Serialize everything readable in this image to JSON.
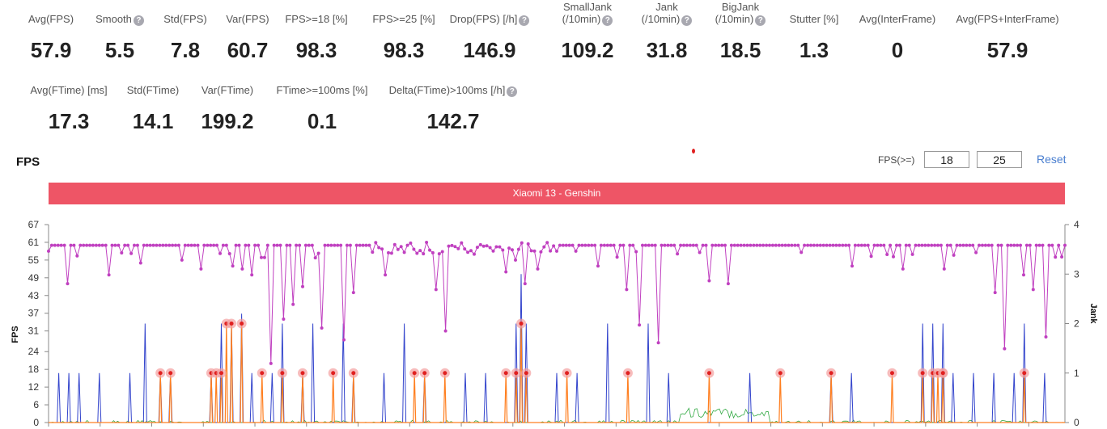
{
  "stats_row1": [
    {
      "label": "Avg(FPS)",
      "value": "57.9",
      "help": false
    },
    {
      "label": "Smooth",
      "value": "5.5",
      "help": true
    },
    {
      "label": "Std(FPS)",
      "value": "7.8",
      "help": false
    },
    {
      "label": "Var(FPS)",
      "value": "60.7",
      "help": false
    },
    {
      "label": "FPS>=18 [%]",
      "value": "98.3",
      "help": false
    },
    {
      "label": "FPS>=25 [%]",
      "value": "98.3",
      "help": false
    },
    {
      "label": "Drop(FPS) [/h]",
      "value": "146.9",
      "help": true
    },
    {
      "label": "SmallJank",
      "label2": "(/10min)",
      "value": "109.2",
      "help": true
    },
    {
      "label": "Jank",
      "label2": "(/10min)",
      "value": "31.8",
      "help": true
    },
    {
      "label": "BigJank",
      "label2": "(/10min)",
      "value": "18.5",
      "help": true
    },
    {
      "label": "Stutter [%]",
      "value": "1.3",
      "help": false
    },
    {
      "label": "Avg(InterFrame)",
      "value": "0",
      "help": false
    },
    {
      "label": "Avg(FPS+InterFrame)",
      "value": "57.9",
      "help": false
    }
  ],
  "stats_row2": [
    {
      "label": "Avg(FTime) [ms]",
      "value": "17.3",
      "help": false
    },
    {
      "label": "Std(FTime)",
      "value": "14.1",
      "help": false
    },
    {
      "label": "Var(FTime)",
      "value": "199.2",
      "help": false
    },
    {
      "label": "FTime>=100ms [%]",
      "value": "0.1",
      "help": false
    },
    {
      "label": "Delta(FTime)>100ms [/h]",
      "value": "142.7",
      "help": true
    }
  ],
  "help_glyph": "?",
  "section_title": "FPS",
  "threshold": {
    "label": "FPS(>=)",
    "value1": "18",
    "value2": "25",
    "reset_label": "Reset"
  },
  "colors": {
    "banner": "#ee5566",
    "fps_line": "#c040c0",
    "jank_blue": "#3344cc",
    "jank_orange": "#ff7f20",
    "jank_green": "#33aa44",
    "marker_red": "#e02020",
    "link": "#4a7fd0"
  },
  "chart_data": {
    "type": "line",
    "title": "Xiaomi 13 - Genshin",
    "ylabel": "FPS",
    "y2label": "Jank",
    "yticks": [
      0,
      6,
      12,
      18,
      24,
      31,
      37,
      43,
      49,
      55,
      61,
      67
    ],
    "y2ticks": [
      0,
      1,
      2,
      3,
      4
    ],
    "ylim": [
      0,
      67
    ],
    "y2lim": [
      0,
      4
    ],
    "fps_baseline": 60,
    "fps_dips": [
      [
        0.02,
        47
      ],
      [
        0.06,
        50
      ],
      [
        0.09,
        54
      ],
      [
        0.13,
        55
      ],
      [
        0.15,
        52
      ],
      [
        0.18,
        53
      ],
      [
        0.19,
        52
      ],
      [
        0.2,
        50
      ],
      [
        0.22,
        20
      ],
      [
        0.23,
        35
      ],
      [
        0.24,
        40
      ],
      [
        0.25,
        46
      ],
      [
        0.27,
        32
      ],
      [
        0.29,
        28
      ],
      [
        0.3,
        44
      ],
      [
        0.33,
        50
      ],
      [
        0.38,
        45
      ],
      [
        0.39,
        31
      ],
      [
        0.42,
        57
      ],
      [
        0.45,
        51
      ],
      [
        0.46,
        55
      ],
      [
        0.47,
        47
      ],
      [
        0.48,
        52
      ],
      [
        0.5,
        58
      ],
      [
        0.52,
        58
      ],
      [
        0.54,
        53
      ],
      [
        0.57,
        45
      ],
      [
        0.58,
        33
      ],
      [
        0.6,
        27
      ],
      [
        0.65,
        48
      ],
      [
        0.67,
        47
      ],
      [
        0.79,
        53
      ],
      [
        0.84,
        52
      ],
      [
        0.88,
        52
      ],
      [
        0.93,
        44
      ],
      [
        0.94,
        25
      ],
      [
        0.96,
        50
      ],
      [
        0.97,
        45
      ],
      [
        0.98,
        29
      ],
      [
        0.99,
        56
      ]
    ],
    "red_markers": [
      [
        0.11,
        1
      ],
      [
        0.12,
        1
      ],
      [
        0.16,
        1
      ],
      [
        0.165,
        1
      ],
      [
        0.17,
        1
      ],
      [
        0.175,
        2
      ],
      [
        0.18,
        2
      ],
      [
        0.19,
        2
      ],
      [
        0.21,
        1
      ],
      [
        0.23,
        1
      ],
      [
        0.25,
        1
      ],
      [
        0.28,
        1
      ],
      [
        0.3,
        1
      ],
      [
        0.36,
        1
      ],
      [
        0.37,
        1
      ],
      [
        0.39,
        1
      ],
      [
        0.45,
        1
      ],
      [
        0.46,
        1
      ],
      [
        0.465,
        2
      ],
      [
        0.47,
        1
      ],
      [
        0.51,
        1
      ],
      [
        0.57,
        1
      ],
      [
        0.65,
        1
      ],
      [
        0.72,
        1
      ],
      [
        0.77,
        1
      ],
      [
        0.83,
        1
      ],
      [
        0.86,
        1
      ],
      [
        0.87,
        1
      ],
      [
        0.875,
        1
      ],
      [
        0.88,
        1
      ],
      [
        0.88,
        1
      ],
      [
        0.96,
        1
      ]
    ],
    "blue_spikes": [
      [
        0.01,
        1
      ],
      [
        0.02,
        1
      ],
      [
        0.03,
        1
      ],
      [
        0.05,
        1
      ],
      [
        0.08,
        1
      ],
      [
        0.095,
        2
      ],
      [
        0.11,
        1
      ],
      [
        0.12,
        1
      ],
      [
        0.16,
        1
      ],
      [
        0.17,
        2
      ],
      [
        0.18,
        2
      ],
      [
        0.19,
        2.2
      ],
      [
        0.2,
        1
      ],
      [
        0.22,
        1
      ],
      [
        0.23,
        2
      ],
      [
        0.25,
        1
      ],
      [
        0.26,
        2
      ],
      [
        0.29,
        2
      ],
      [
        0.3,
        1
      ],
      [
        0.33,
        1
      ],
      [
        0.35,
        2
      ],
      [
        0.37,
        1
      ],
      [
        0.41,
        1
      ],
      [
        0.43,
        1
      ],
      [
        0.46,
        2
      ],
      [
        0.465,
        3
      ],
      [
        0.47,
        2
      ],
      [
        0.5,
        1
      ],
      [
        0.52,
        1
      ],
      [
        0.55,
        2
      ],
      [
        0.59,
        2
      ],
      [
        0.61,
        1
      ],
      [
        0.69,
        1
      ],
      [
        0.77,
        1
      ],
      [
        0.79,
        1
      ],
      [
        0.86,
        2
      ],
      [
        0.87,
        2
      ],
      [
        0.88,
        2
      ],
      [
        0.89,
        1
      ],
      [
        0.91,
        1
      ],
      [
        0.93,
        1
      ],
      [
        0.95,
        1
      ],
      [
        0.96,
        2
      ],
      [
        0.98,
        1
      ]
    ]
  }
}
